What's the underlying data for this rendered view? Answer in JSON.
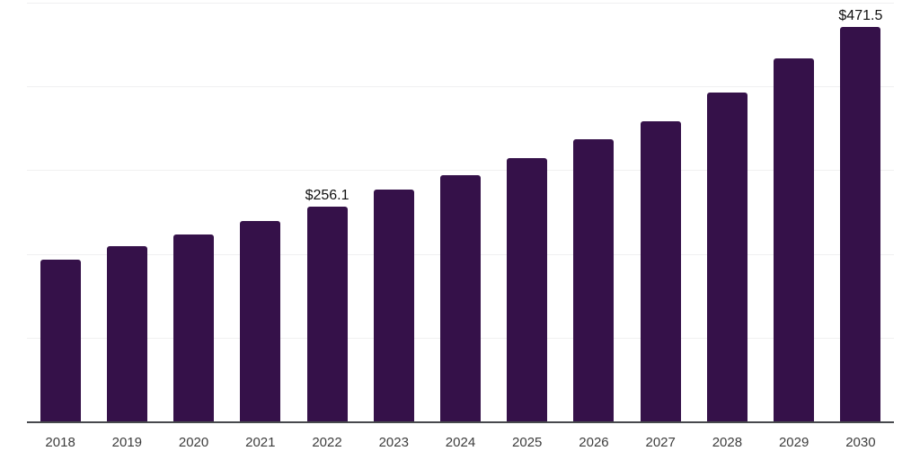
{
  "chart_data": {
    "type": "bar",
    "title": "",
    "xlabel": "",
    "ylabel": "",
    "categories": [
      "2018",
      "2019",
      "2020",
      "2021",
      "2022",
      "2023",
      "2024",
      "2025",
      "2026",
      "2027",
      "2028",
      "2029",
      "2030"
    ],
    "values": [
      193.5,
      208.8,
      223.7,
      239.8,
      256.1,
      276.3,
      294.3,
      313.9,
      336.4,
      358.9,
      393.2,
      433.0,
      471.5
    ],
    "data_labels": [
      {
        "index": 4,
        "text": "$256.1"
      },
      {
        "index": 12,
        "text": "$471.5"
      }
    ],
    "ylim": [
      0,
      500
    ],
    "gridline_values": [
      100,
      200,
      300,
      400,
      500
    ],
    "grid_on": true,
    "legend": "none",
    "y_tick_labels_visible": false,
    "colors": {
      "bar": "#351149",
      "gridline": "#f0f0f1",
      "axis_line": "#47494d",
      "x_tick_label": "#3d3d3d",
      "value_label": "#101010",
      "background": "#ffffff"
    }
  }
}
